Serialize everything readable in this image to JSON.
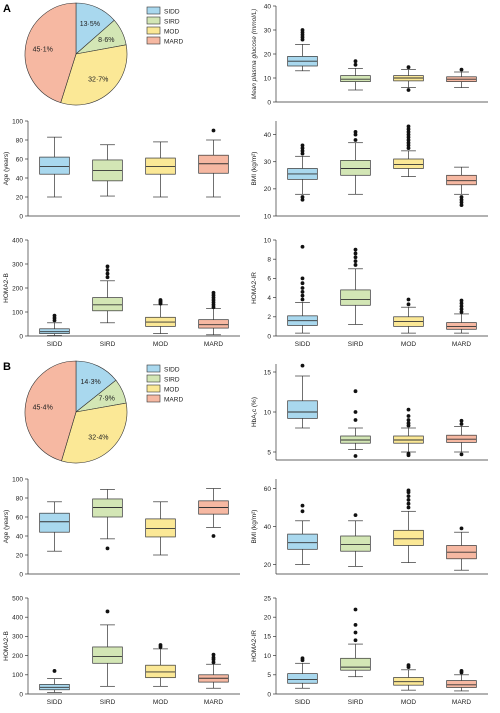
{
  "colors": {
    "SIDD": "#a9d8ee",
    "SIRD": "#d3e6b5",
    "MOD": "#fbe896",
    "MARD": "#f6b8a2",
    "axis": "#333333"
  },
  "sections": [
    {
      "letter": "A",
      "pie": {
        "type": "pie",
        "slices": [
          {
            "label": "SIDD",
            "value": 13.5,
            "text": "13·5%"
          },
          {
            "label": "SIRD",
            "value": 8.6,
            "text": "8·6%"
          },
          {
            "label": "MOD",
            "value": 32.7,
            "text": "32·7%"
          },
          {
            "label": "MARD",
            "value": 45.1,
            "text": "45·1%"
          }
        ]
      },
      "legend": [
        "SIDD",
        "SIRD",
        "MOD",
        "MARD"
      ],
      "panels": [
        {
          "id": "a-glucose",
          "type": "box",
          "ylabel": "Mean plasma glucose (mmol/L)",
          "ylim": [
            0,
            40
          ],
          "yticks": [
            0,
            10,
            20,
            30,
            40
          ],
          "categories": [
            "SIDD",
            "SIRD",
            "MOD",
            "MARD"
          ],
          "show_x": false,
          "boxes": [
            {
              "min": 13,
              "q1": 15,
              "median": 17,
              "q3": 19,
              "max": 24,
              "outliers": [
                26,
                27,
                28,
                29,
                30
              ]
            },
            {
              "min": 5,
              "q1": 8.5,
              "median": 9.5,
              "q3": 11,
              "max": 14,
              "outliers": [
                15.5,
                17
              ]
            },
            {
              "min": 6,
              "q1": 8.8,
              "median": 10,
              "q3": 11,
              "max": 13.5,
              "outliers": [
                5,
                14.5
              ]
            },
            {
              "min": 6,
              "q1": 8.5,
              "median": 9.5,
              "q3": 10.5,
              "max": 12.5,
              "outliers": [
                13.5
              ]
            }
          ]
        },
        {
          "id": "a-age",
          "type": "box",
          "ylabel": "Age (years)",
          "ylim": [
            0,
            100
          ],
          "yticks": [
            0,
            20,
            40,
            60,
            80,
            100
          ],
          "categories": [
            "SIDD",
            "SIRD",
            "MOD",
            "MARD"
          ],
          "show_x": false,
          "boxes": [
            {
              "min": 20,
              "q1": 44,
              "median": 52,
              "q3": 62,
              "max": 83,
              "outliers": []
            },
            {
              "min": 21,
              "q1": 37,
              "median": 48,
              "q3": 59,
              "max": 75,
              "outliers": []
            },
            {
              "min": 20,
              "q1": 44,
              "median": 52,
              "q3": 61,
              "max": 78,
              "outliers": []
            },
            {
              "min": 20,
              "q1": 45,
              "median": 55,
              "q3": 64,
              "max": 80,
              "outliers": [
                90
              ]
            }
          ]
        },
        {
          "id": "a-bmi",
          "type": "box",
          "ylabel": "BMI (kg/m²)",
          "ylim": [
            10,
            45
          ],
          "yticks": [
            10,
            20,
            30,
            40
          ],
          "categories": [
            "SIDD",
            "SIRD",
            "MOD",
            "MARD"
          ],
          "show_x": false,
          "boxes": [
            {
              "min": 18,
              "q1": 23.5,
              "median": 25.5,
              "q3": 27.5,
              "max": 32,
              "outliers": [
                16,
                17,
                33,
                34,
                35,
                36
              ]
            },
            {
              "min": 18,
              "q1": 25,
              "median": 27.5,
              "q3": 30.5,
              "max": 37,
              "outliers": [
                38,
                40,
                41
              ]
            },
            {
              "min": 24.5,
              "q1": 27.5,
              "median": 29,
              "q3": 31,
              "max": 34,
              "outliers": [
                35,
                36,
                37,
                38,
                39,
                40,
                41,
                42,
                43
              ]
            },
            {
              "min": 18,
              "q1": 21.5,
              "median": 23,
              "q3": 25,
              "max": 28,
              "outliers": [
                14,
                15,
                16,
                17
              ]
            }
          ]
        },
        {
          "id": "a-homab",
          "type": "box",
          "ylabel": "HOMA2-B",
          "ylim": [
            0,
            400
          ],
          "yticks": [
            0,
            100,
            200,
            300,
            400
          ],
          "categories": [
            "SIDD",
            "SIRD",
            "MOD",
            "MARD"
          ],
          "show_x": true,
          "boxes": [
            {
              "min": 2,
              "q1": 10,
              "median": 18,
              "q3": 30,
              "max": 55,
              "outliers": [
                65,
                75,
                85
              ]
            },
            {
              "min": 55,
              "q1": 105,
              "median": 130,
              "q3": 160,
              "max": 230,
              "outliers": [
                245,
                260,
                275,
                290
              ]
            },
            {
              "min": 10,
              "q1": 40,
              "median": 58,
              "q3": 78,
              "max": 130,
              "outliers": [
                135,
                140,
                145,
                150
              ]
            },
            {
              "min": 5,
              "q1": 33,
              "median": 47,
              "q3": 68,
              "max": 115,
              "outliers": [
                120,
                130,
                140,
                150,
                160,
                170,
                180
              ]
            }
          ]
        },
        {
          "id": "a-homair",
          "type": "box",
          "ylabel": "HOMA2-IR",
          "ylim": [
            0,
            10
          ],
          "yticks": [
            0,
            2,
            4,
            6,
            8,
            10
          ],
          "categories": [
            "SIDD",
            "SIRD",
            "MOD",
            "MARD"
          ],
          "show_x": true,
          "boxes": [
            {
              "min": 0.3,
              "q1": 1.1,
              "median": 1.6,
              "q3": 2.1,
              "max": 3.5,
              "outliers": [
                3.8,
                4.2,
                4.6,
                5,
                5.5,
                6,
                9.3
              ]
            },
            {
              "min": 1.2,
              "q1": 3.2,
              "median": 3.8,
              "q3": 4.8,
              "max": 7,
              "outliers": [
                7.4,
                7.8,
                8.2,
                8.6,
                9
              ]
            },
            {
              "min": 0.3,
              "q1": 1,
              "median": 1.5,
              "q3": 2,
              "max": 3,
              "outliers": [
                3.3,
                3.8
              ]
            },
            {
              "min": 0.3,
              "q1": 0.7,
              "median": 1,
              "q3": 1.4,
              "max": 2.3,
              "outliers": [
                2.5,
                2.8,
                3.1,
                3.4,
                3.7
              ]
            }
          ]
        }
      ]
    },
    {
      "letter": "B",
      "pie": {
        "type": "pie",
        "slices": [
          {
            "label": "SIDD",
            "value": 14.3,
            "text": "14·3%"
          },
          {
            "label": "SIRD",
            "value": 7.9,
            "text": "7·9%"
          },
          {
            "label": "MOD",
            "value": 32.4,
            "text": "32·4%"
          },
          {
            "label": "MARD",
            "value": 45.4,
            "text": "45·4%"
          }
        ]
      },
      "legend": [
        "SIDD",
        "SIRD",
        "MOD",
        "MARD"
      ],
      "panels": [
        {
          "id": "b-hba1c",
          "type": "box",
          "ylabel": "HbA₁c (%)",
          "ylim": [
            4,
            16
          ],
          "yticks": [
            5,
            10,
            15
          ],
          "categories": [
            "SIDD",
            "SIRD",
            "MOD",
            "MARD"
          ],
          "show_x": false,
          "boxes": [
            {
              "min": 8,
              "q1": 9.2,
              "median": 10,
              "q3": 11.4,
              "max": 14.5,
              "outliers": [
                15.8
              ]
            },
            {
              "min": 5.3,
              "q1": 6.1,
              "median": 6.5,
              "q3": 7,
              "max": 8,
              "outliers": [
                4.5,
                9,
                10,
                12.6
              ]
            },
            {
              "min": 5,
              "q1": 6.1,
              "median": 6.5,
              "q3": 7,
              "max": 8,
              "outliers": [
                4.6,
                4.8,
                8.3,
                8.6,
                9,
                9.5,
                10.3
              ]
            },
            {
              "min": 5,
              "q1": 6.2,
              "median": 6.6,
              "q3": 7.1,
              "max": 8.2,
              "outliers": [
                4.7,
                8.5,
                8.9
              ]
            }
          ]
        },
        {
          "id": "b-age",
          "type": "box",
          "ylabel": "Age (years)",
          "ylim": [
            0,
            100
          ],
          "yticks": [
            0,
            20,
            40,
            60,
            80,
            100
          ],
          "categories": [
            "SIDD",
            "SIRD",
            "MOD",
            "MARD"
          ],
          "show_x": false,
          "boxes": [
            {
              "min": 24,
              "q1": 44,
              "median": 55,
              "q3": 64,
              "max": 76,
              "outliers": []
            },
            {
              "min": 37,
              "q1": 60,
              "median": 70,
              "q3": 79,
              "max": 89,
              "outliers": [
                27
              ]
            },
            {
              "min": 20,
              "q1": 39,
              "median": 48,
              "q3": 58,
              "max": 76,
              "outliers": []
            },
            {
              "min": 49,
              "q1": 63,
              "median": 70,
              "q3": 77,
              "max": 90,
              "outliers": [
                40
              ]
            }
          ]
        },
        {
          "id": "b-bmi",
          "type": "box",
          "ylabel": "BMI (kg/m²)",
          "ylim": [
            15,
            65
          ],
          "yticks": [
            20,
            40,
            60
          ],
          "categories": [
            "SIDD",
            "SIRD",
            "MOD",
            "MARD"
          ],
          "show_x": false,
          "boxes": [
            {
              "min": 20,
              "q1": 28,
              "median": 31.5,
              "q3": 36,
              "max": 43,
              "outliers": [
                48,
                51
              ]
            },
            {
              "min": 19,
              "q1": 27,
              "median": 30.5,
              "q3": 35,
              "max": 43,
              "outliers": [
                46
              ]
            },
            {
              "min": 21,
              "q1": 30,
              "median": 33.5,
              "q3": 38,
              "max": 48,
              "outliers": [
                50,
                52,
                54,
                56,
                58,
                59
              ]
            },
            {
              "min": 17,
              "q1": 23,
              "median": 26.5,
              "q3": 30,
              "max": 37,
              "outliers": [
                39
              ]
            }
          ]
        },
        {
          "id": "b-homab",
          "type": "box",
          "ylabel": "HOMA2-B",
          "ylim": [
            0,
            500
          ],
          "yticks": [
            0,
            100,
            200,
            300,
            400,
            500
          ],
          "categories": [
            "SIDD",
            "SIRD",
            "MOD",
            "MARD"
          ],
          "show_x": true,
          "boxes": [
            {
              "min": 8,
              "q1": 22,
              "median": 35,
              "q3": 50,
              "max": 80,
              "outliers": [
                120
              ]
            },
            {
              "min": 40,
              "q1": 160,
              "median": 195,
              "q3": 245,
              "max": 360,
              "outliers": [
                430
              ]
            },
            {
              "min": 40,
              "q1": 85,
              "median": 115,
              "q3": 150,
              "max": 235,
              "outliers": [
                245,
                255
              ]
            },
            {
              "min": 30,
              "q1": 62,
              "median": 82,
              "q3": 100,
              "max": 155,
              "outliers": [
                165,
                180,
                190,
                205
              ]
            }
          ]
        },
        {
          "id": "b-homair",
          "type": "box",
          "ylabel": "HOMA2-IR",
          "ylim": [
            0,
            25
          ],
          "yticks": [
            0,
            5,
            10,
            15,
            20,
            25
          ],
          "categories": [
            "SIDD",
            "SIRD",
            "MOD",
            "MARD"
          ],
          "show_x": true,
          "boxes": [
            {
              "min": 1.5,
              "q1": 2.8,
              "median": 3.8,
              "q3": 5.3,
              "max": 8,
              "outliers": [
                8.8,
                9.3
              ]
            },
            {
              "min": 4.5,
              "q1": 6.2,
              "median": 7,
              "q3": 9.3,
              "max": 13,
              "outliers": [
                14,
                16,
                18,
                22
              ]
            },
            {
              "min": 1,
              "q1": 2.3,
              "median": 3.2,
              "q3": 4.3,
              "max": 6.3,
              "outliers": [
                7,
                7.5
              ]
            },
            {
              "min": 0.8,
              "q1": 1.7,
              "median": 2.4,
              "q3": 3.5,
              "max": 5,
              "outliers": [
                5.6,
                6
              ]
            }
          ]
        }
      ]
    }
  ]
}
